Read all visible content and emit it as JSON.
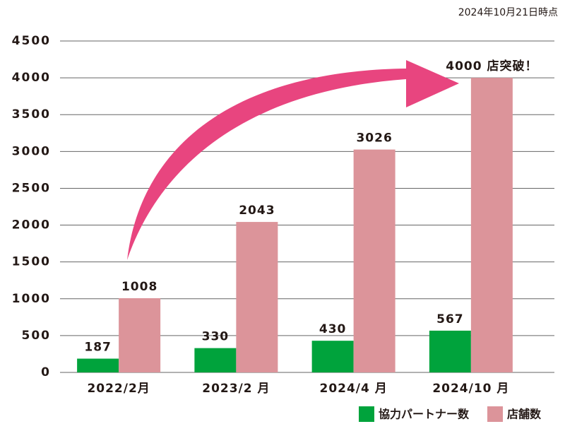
{
  "chart_data": {
    "type": "bar",
    "annotation": "2024年10月21日時点",
    "categories": [
      "2022/2月",
      "2023/2 月",
      "2024/4 月",
      "2024/10 月"
    ],
    "series": [
      {
        "name": "協力パートナー数",
        "color": "#00a33c",
        "values": [
          187,
          330,
          430,
          567
        ]
      },
      {
        "name": "店舗数",
        "color": "#dc949a",
        "values": [
          1008,
          2043,
          3026,
          4000
        ],
        "value_labels": [
          "1008",
          "2043",
          "3026",
          "4000 店突破！"
        ]
      }
    ],
    "ylim": [
      0,
      4500
    ],
    "yticks": [
      0,
      500,
      1000,
      1500,
      2000,
      2500,
      3000,
      3500,
      4000,
      4500
    ],
    "grid": true
  }
}
